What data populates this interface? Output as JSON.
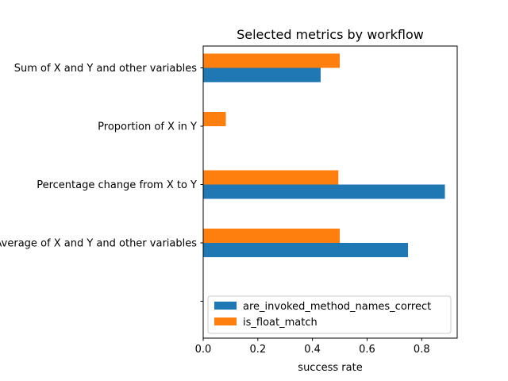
{
  "chart_data": {
    "type": "bar",
    "orientation": "horizontal",
    "title": "Selected metrics by workflow",
    "xlabel": "success rate",
    "ylabel": "",
    "xlim": [
      0,
      0.93
    ],
    "xticks": [
      "0.0",
      "0.2",
      "0.4",
      "0.6",
      "0.8"
    ],
    "categories": [
      "Sum of X and Y and other variables",
      "Proportion of X in Y",
      "Percentage change from X to Y",
      "Average of X and Y and other variables",
      ""
    ],
    "series": [
      {
        "name": "are_invoked_method_names_correct",
        "color": "#1f77b4",
        "values": [
          0.43,
          0,
          0.885,
          0.75,
          0
        ]
      },
      {
        "name": "is_float_match",
        "color": "#ff7f0e",
        "values": [
          0.5,
          0.083,
          0.495,
          0.5,
          0
        ]
      }
    ],
    "grid": false,
    "legend_position": "lower-right"
  }
}
